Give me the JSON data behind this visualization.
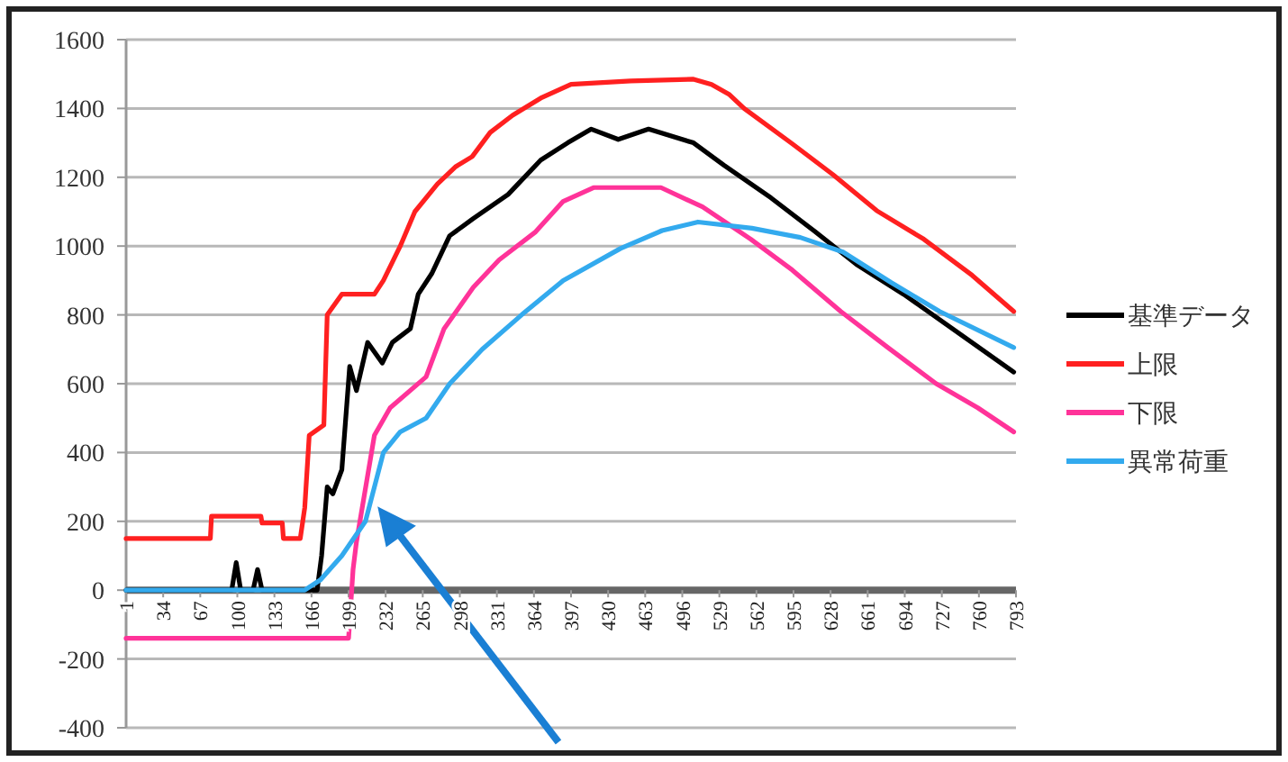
{
  "chart_data": {
    "type": "line",
    "xlim": [
      1,
      793
    ],
    "xticks": [
      1,
      34,
      67,
      100,
      133,
      166,
      199,
      232,
      265,
      298,
      331,
      364,
      397,
      430,
      463,
      496,
      529,
      562,
      595,
      628,
      661,
      694,
      727,
      760,
      793
    ],
    "ylim": [
      -400,
      1600
    ],
    "yticks": [
      -400,
      -200,
      0,
      200,
      400,
      600,
      800,
      1000,
      1200,
      1400,
      1600
    ],
    "grid": "y",
    "legend": "right",
    "series": [
      {
        "name": "基準データ",
        "color": "#000000",
        "x": [
          1,
          95,
          99,
          103,
          114,
          118,
          122,
          171,
          175,
          180,
          185,
          193,
          200,
          206,
          216,
          229,
          238,
          254,
          261,
          273,
          289,
          310,
          341,
          370,
          394,
          415,
          439,
          466,
          506,
          533,
          575,
          613,
          651,
          693,
          746,
          791
        ],
        "values": [
          0,
          0,
          80,
          0,
          0,
          60,
          0,
          0,
          100,
          300,
          280,
          350,
          650,
          580,
          720,
          660,
          720,
          760,
          860,
          920,
          1030,
          1080,
          1150,
          1250,
          1300,
          1340,
          1310,
          1340,
          1300,
          1235,
          1140,
          1045,
          947,
          860,
          738,
          634
        ]
      },
      {
        "name": "上限",
        "color": "#ff2020",
        "x": [
          1,
          76,
          77,
          121,
          122,
          140,
          141,
          156,
          160,
          164,
          177,
          180,
          193,
          222,
          230,
          245,
          258,
          278,
          294,
          309,
          325,
          345,
          370,
          397,
          450,
          506,
          522,
          538,
          551,
          594,
          630,
          669,
          711,
          754,
          791
        ],
        "values": [
          150,
          150,
          215,
          215,
          195,
          195,
          150,
          150,
          240,
          450,
          480,
          800,
          860,
          860,
          900,
          1000,
          1100,
          1180,
          1230,
          1260,
          1330,
          1380,
          1430,
          1470,
          1480,
          1485,
          1470,
          1440,
          1400,
          1297,
          1208,
          1103,
          1020,
          915,
          810
        ]
      },
      {
        "name": "下限",
        "color": "#ff3399",
        "x": [
          1,
          199,
          203,
          206,
          222,
          236,
          268,
          284,
          310,
          333,
          365,
          390,
          417,
          477,
          514,
          557,
          594,
          637,
          679,
          722,
          759,
          791
        ],
        "values": [
          -140,
          -140,
          60,
          140,
          450,
          530,
          620,
          760,
          880,
          960,
          1040,
          1130,
          1170,
          1170,
          1114,
          1020,
          930,
          810,
          705,
          600,
          530,
          460
        ]
      },
      {
        "name": "異常荷重",
        "color": "#33aaee",
        "x": [
          1,
          160,
          174,
          193,
          214,
          222,
          230,
          245,
          268,
          289,
          318,
          353,
          390,
          441,
          478,
          510,
          558,
          601,
          639,
          682,
          725,
          791
        ],
        "values": [
          0,
          0,
          30,
          100,
          200,
          300,
          400,
          460,
          500,
          600,
          700,
          800,
          900,
          993,
          1045,
          1070,
          1052,
          1025,
          983,
          894,
          810,
          705
        ]
      }
    ]
  }
}
